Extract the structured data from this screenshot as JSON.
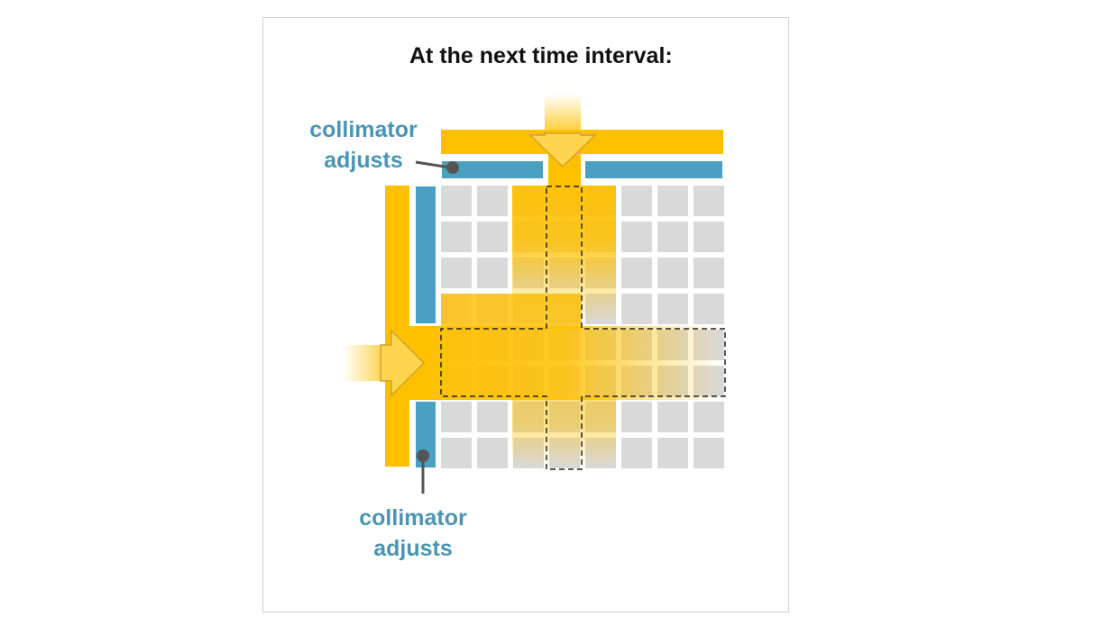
{
  "title": "At the next time interval:",
  "labels": {
    "top": {
      "line1": "collimator",
      "line2": "adjusts"
    },
    "bottom": {
      "line1": "collimator",
      "line2": "adjusts"
    }
  },
  "grid": {
    "rows": 8,
    "cols": 8
  },
  "colors": {
    "beam": "#ffc000",
    "collimator": "#4aa0c0",
    "cell": "#d9d9d9",
    "leader": "#555555",
    "label": "#4a95b3",
    "frame": "#cfcfcf"
  }
}
